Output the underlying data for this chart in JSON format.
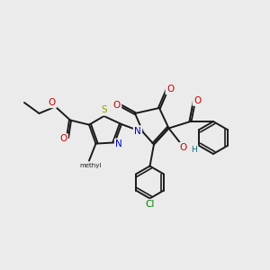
{
  "bg_color": "#ebebeb",
  "bond_color": "#1a1a1a",
  "bond_width": 1.4,
  "dbo": 0.07,
  "atom_colors": {
    "O": "#cc0000",
    "N": "#0000cc",
    "S": "#999900",
    "Cl": "#008000",
    "H": "#007070",
    "C": "#1a1a1a"
  },
  "fs": 7.5,
  "fss": 6.0
}
